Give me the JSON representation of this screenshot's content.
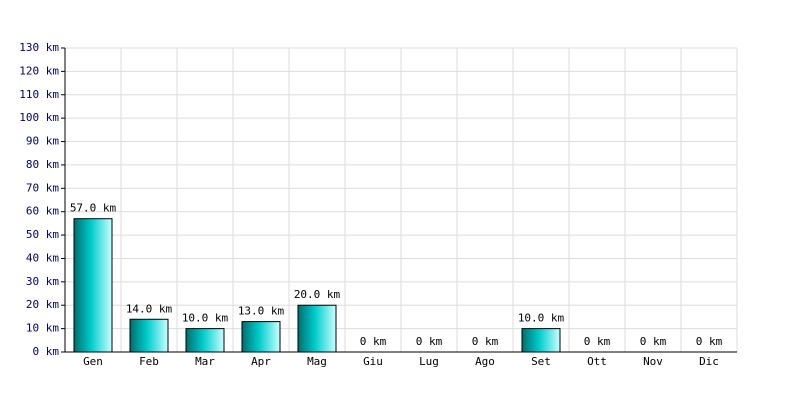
{
  "chart_data": {
    "type": "bar",
    "categories": [
      "Gen",
      "Feb",
      "Mar",
      "Apr",
      "Mag",
      "Giu",
      "Lug",
      "Ago",
      "Set",
      "Ott",
      "Nov",
      "Dic"
    ],
    "values": [
      57,
      14,
      10,
      13,
      20,
      0,
      0,
      0,
      10,
      0,
      0,
      0
    ],
    "value_labels": [
      "57.0 km",
      "14.0 km",
      "10.0 km",
      "13.0 km",
      "20.0 km",
      "0 km",
      "0 km",
      "0 km",
      "10.0 km",
      "0 km",
      "0 km",
      "0 km"
    ],
    "color": "#00cccc",
    "ylim": [
      0,
      130
    ],
    "yticks": [
      {
        "value": 0,
        "label": "0 km"
      },
      {
        "value": 10,
        "label": "10 km"
      },
      {
        "value": 20,
        "label": "20 km"
      },
      {
        "value": 30,
        "label": "30 km"
      },
      {
        "value": 40,
        "label": "40 km"
      },
      {
        "value": 50,
        "label": "50 km"
      },
      {
        "value": 60,
        "label": "60 km"
      },
      {
        "value": 70,
        "label": "70 km"
      },
      {
        "value": 80,
        "label": "80 km"
      },
      {
        "value": 90,
        "label": "90 km"
      },
      {
        "value": 100,
        "label": "100 km"
      },
      {
        "value": 110,
        "label": "110 km"
      },
      {
        "value": 120,
        "label": "120 km"
      },
      {
        "value": 130,
        "label": "130 km"
      }
    ],
    "grid": true
  }
}
